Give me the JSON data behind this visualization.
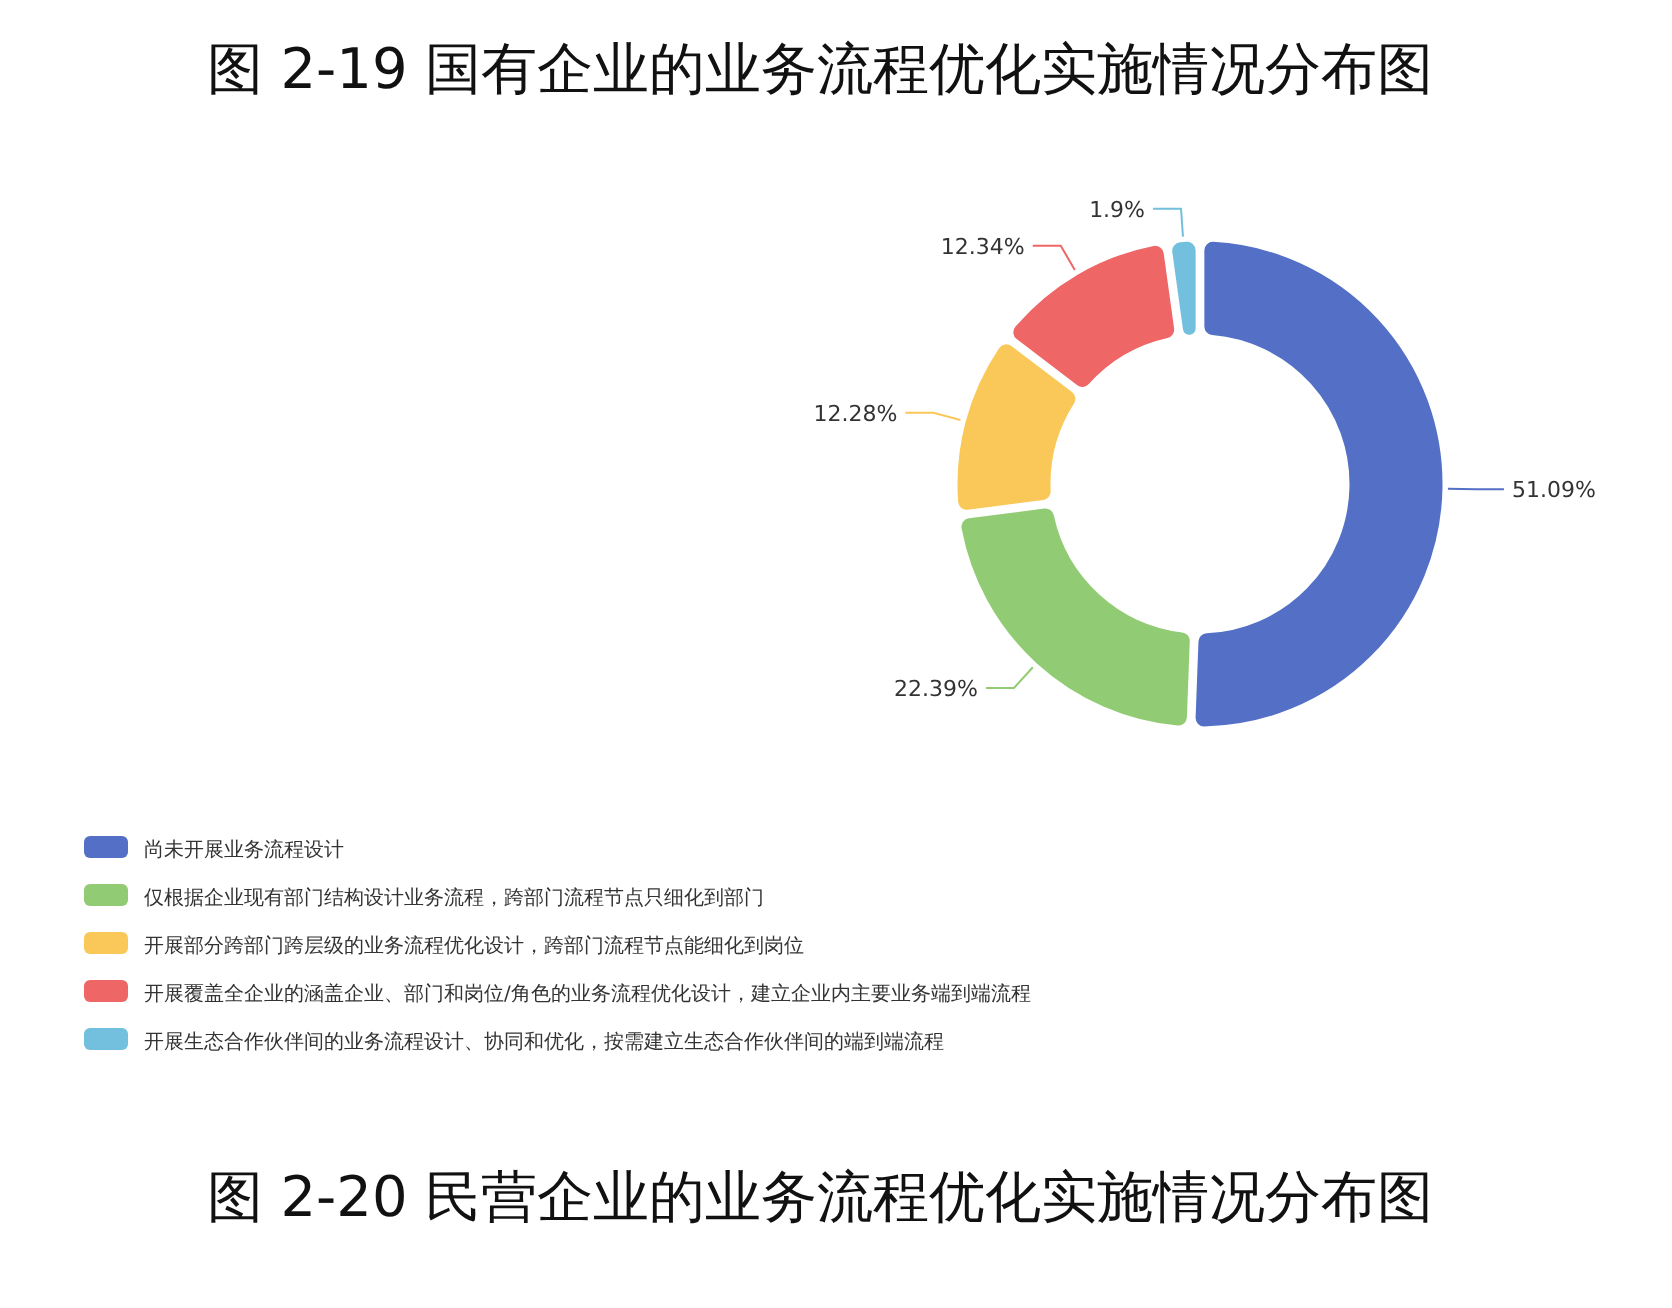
{
  "chart_data": {
    "type": "donut",
    "title": "图 2-19  国有企业的业务流程优化实施情况分布图",
    "categories": [
      "尚未开展业务流程设计",
      "仅根据企业现有部门结构设计业务流程，跨部门流程节点只细化到部门",
      "开展部分跨部门跨层级的业务流程优化设计，跨部门流程节点能细化到岗位",
      "开展覆盖全企业的涵盖企业、部门和岗位/角色的业务流程优化设计，建立企业内主要业务端到端流程",
      "开展生态合作伙伴间的业务流程设计、协同和优化，按需建立生态合作伙伴间的端到端流程"
    ],
    "values": [
      51.09,
      22.39,
      12.28,
      12.34,
      1.9
    ],
    "value_labels": [
      "51.09%",
      "22.39%",
      "12.28%",
      "12.34%",
      "1.9%"
    ],
    "colors": [
      "#5470c6",
      "#91cc75",
      "#fac858",
      "#ee6666",
      "#73c0de"
    ],
    "legend": "bottom left",
    "annotations": [
      "图 2-20  民营企业的业务流程优化实施情况分布图"
    ]
  }
}
